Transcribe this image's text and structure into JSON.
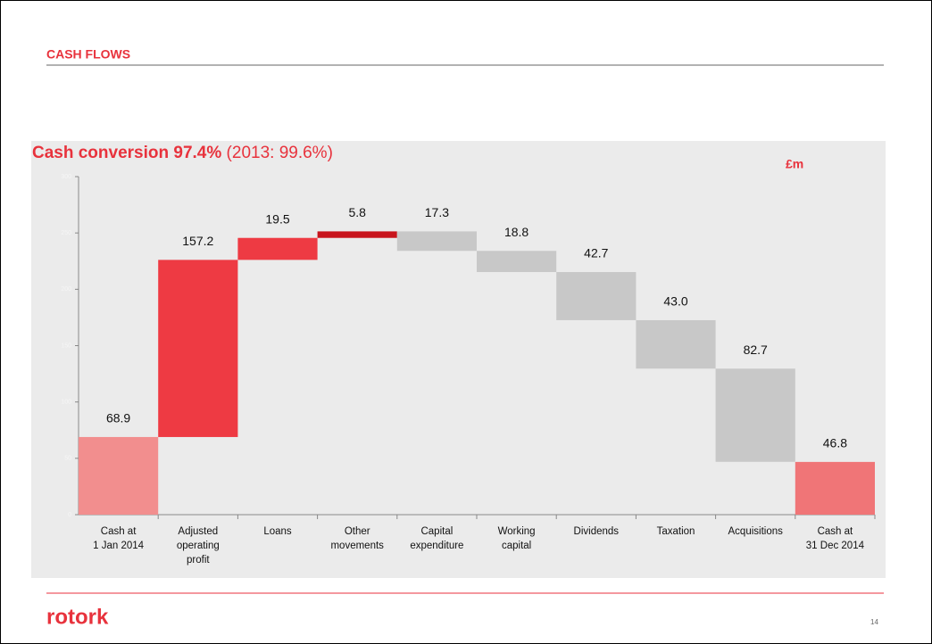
{
  "header": {
    "title": "CASH FLOWS"
  },
  "chart_data": {
    "type": "waterfall",
    "title": "Cash conversion 97.4%",
    "subtitle": "(2013: 99.6%)",
    "unit_label": "£m",
    "categories": [
      [
        "Cash at",
        "1 Jan 2014"
      ],
      [
        "Adjusted",
        "operating",
        "profit"
      ],
      [
        "Loans"
      ],
      [
        "Other",
        "movements"
      ],
      [
        "Capital",
        "expenditure"
      ],
      [
        "Working",
        "capital"
      ],
      [
        "Dividends"
      ],
      [
        "Taxation"
      ],
      [
        "Acquisitions"
      ],
      [
        "Cash at",
        "31 Dec 2014"
      ]
    ],
    "measure": [
      "total",
      "increase",
      "increase",
      "increase",
      "decrease",
      "decrease",
      "decrease",
      "decrease",
      "decrease",
      "total"
    ],
    "values": [
      68.9,
      157.2,
      19.5,
      5.8,
      17.3,
      18.8,
      42.7,
      43,
      82.7,
      46.8
    ],
    "value_labels": [
      "68.9",
      "157.2",
      "19.5",
      "5.8",
      "17.3",
      "18.8",
      "42.7",
      "43.0",
      "82.7",
      "46.8"
    ],
    "colors": [
      "#f28e8e",
      "#ee3a43",
      "#ee3a43",
      "#c8141c",
      "#c8c8c8",
      "#c8c8c8",
      "#c8c8c8",
      "#c8c8c8",
      "#c8c8c8",
      "#f07577"
    ],
    "ylim": [
      0,
      300
    ],
    "yticks": [
      0,
      50,
      100,
      150,
      200,
      250,
      300
    ]
  },
  "footer": {
    "logo": "rotork",
    "page_number": "14"
  }
}
